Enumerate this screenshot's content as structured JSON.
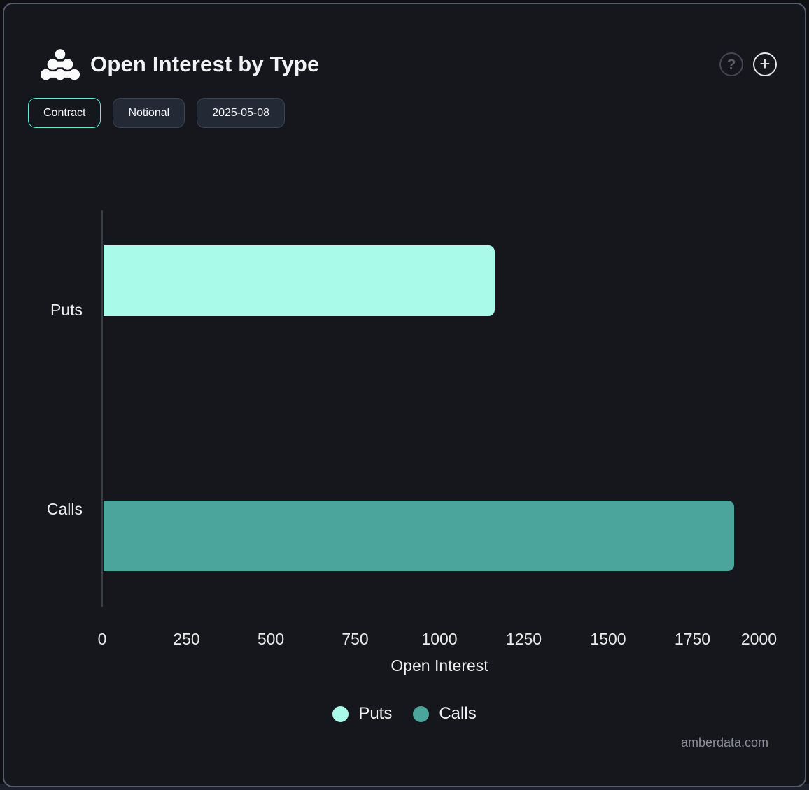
{
  "header": {
    "title": "Open Interest by Type",
    "help_icon": "?",
    "add_icon": "+"
  },
  "toolbar": {
    "buttons": [
      {
        "label": "Contract",
        "active": true
      },
      {
        "label": "Notional",
        "active": false
      },
      {
        "label": "2025-05-08",
        "active": false
      }
    ]
  },
  "chart_data": {
    "type": "bar",
    "orientation": "horizontal",
    "title": "Open Interest by Type",
    "categories": [
      "Puts",
      "Calls"
    ],
    "series": [
      {
        "name": "Puts",
        "value": 1160,
        "color": "#a9fae9"
      },
      {
        "name": "Calls",
        "value": 1870,
        "color": "#4ba59c"
      }
    ],
    "xlabel": "Open Interest",
    "xlim": [
      0,
      2000
    ],
    "x_ticks": [
      0,
      250,
      500,
      750,
      1000,
      1250,
      1500,
      1750,
      2000
    ],
    "grid": false,
    "legend_position": "bottom"
  },
  "footer": {
    "watermark": "amberdata.com"
  },
  "colors": {
    "puts": "#a9fae9",
    "calls": "#4ba59c",
    "accent_border": "#5fe9d6",
    "card_bg": "#15171c",
    "card_border": "#565d6a",
    "axis_line": "#393d44",
    "text": "#f2f3f5",
    "muted_text": "#8b909a"
  }
}
